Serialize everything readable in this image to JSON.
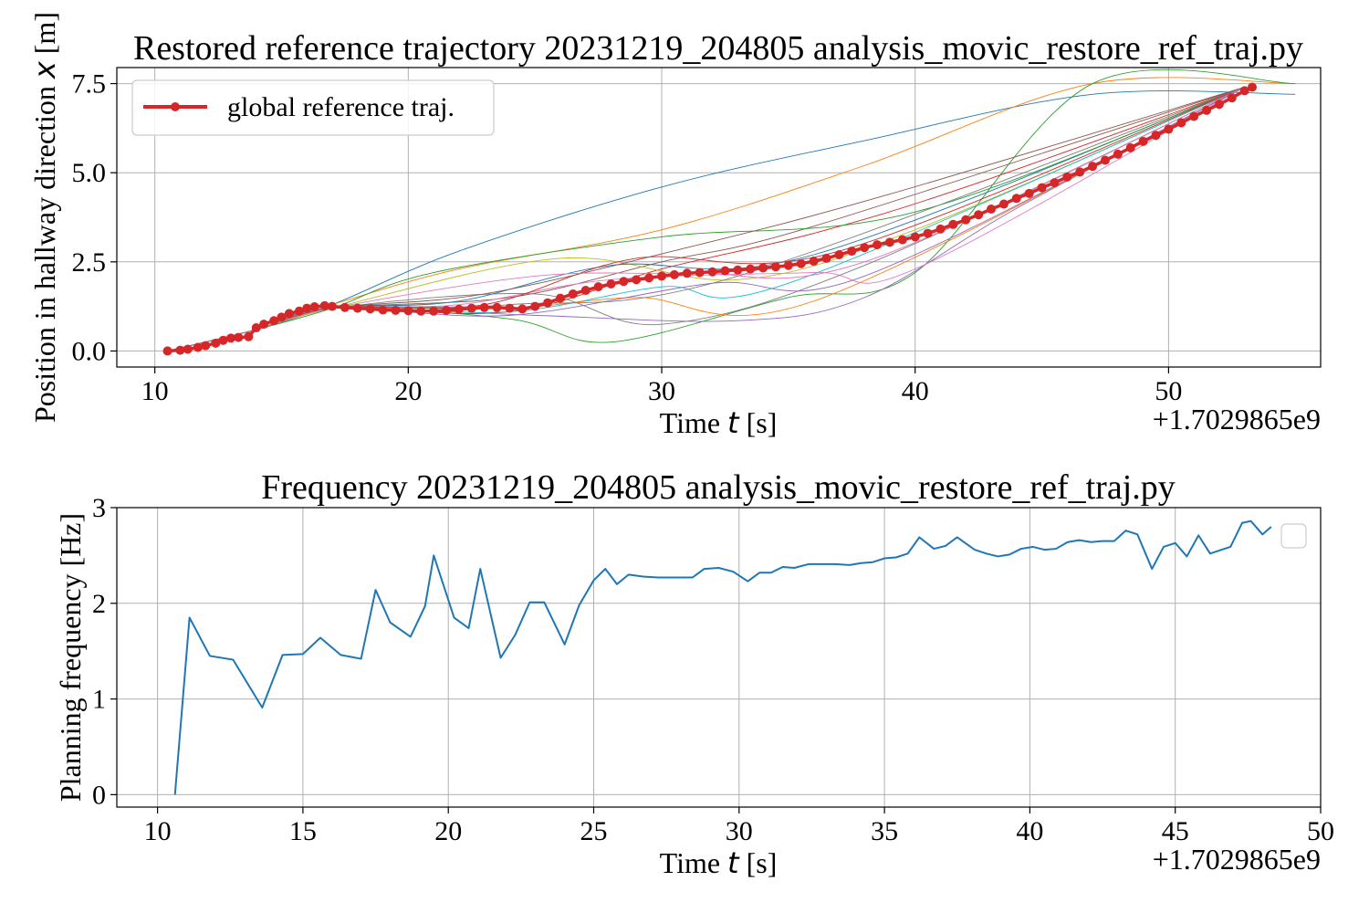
{
  "chart_data": [
    {
      "type": "line",
      "title": "Restored reference trajectory 20231219_204805 analysis_movic_restore_ref_traj.py",
      "xlabel": "Time",
      "xlabel_var": "t",
      "xlabel_unit": "[s]",
      "ylabel": "Position in hallway direction",
      "ylabel_var": "x",
      "ylabel_unit": "[m]",
      "offset_text": "+1.7029865e9",
      "xlim": [
        8.5,
        56.0
      ],
      "ylim": [
        -0.45,
        7.95
      ],
      "xticks": [
        10,
        20,
        30,
        40,
        50
      ],
      "xtick_labels": [
        "10",
        "20",
        "30",
        "40",
        "50"
      ],
      "yticks": [
        0.0,
        2.5,
        5.0,
        7.5
      ],
      "ytick_labels": [
        "0.0",
        "2.5",
        "5.0",
        "7.5"
      ],
      "grid": true,
      "legend_position": "upper-left",
      "background_traj_colors": [
        "#1f77b4",
        "#ff7f0e",
        "#2ca02c",
        "#d62728",
        "#9467bd",
        "#8c564b",
        "#e377c2",
        "#7f7f7f",
        "#bcbd22",
        "#17becf"
      ],
      "background_trajectories": [
        {
          "x": [
            10.5,
            14,
            17,
            22,
            30,
            38,
            47,
            55
          ],
          "y": [
            0.0,
            0.6,
            1.3,
            2.8,
            4.6,
            5.9,
            7.2,
            7.2
          ]
        },
        {
          "x": [
            10.5,
            14,
            17,
            22,
            30,
            38,
            47,
            55
          ],
          "y": [
            0.0,
            0.6,
            1.3,
            2.3,
            3.4,
            5.2,
            7.5,
            7.5
          ]
        },
        {
          "x": [
            10.5,
            14,
            17,
            24,
            28,
            35,
            40,
            47,
            55
          ],
          "y": [
            0.0,
            0.6,
            1.2,
            0.9,
            0.25,
            1.5,
            2.2,
            7.5,
            7.5
          ]
        },
        {
          "x": [
            10.5,
            14,
            17,
            24,
            30,
            36,
            42,
            53
          ],
          "y": [
            0.0,
            0.6,
            1.2,
            1.1,
            2.3,
            3.3,
            4.6,
            7.4
          ]
        },
        {
          "x": [
            10.5,
            14,
            17,
            25,
            33,
            38,
            44,
            53
          ],
          "y": [
            0.0,
            0.6,
            1.2,
            1.0,
            0.85,
            1.5,
            4.0,
            7.4
          ]
        },
        {
          "x": [
            10.5,
            14,
            17,
            24,
            30,
            36,
            53
          ],
          "y": [
            0.0,
            0.6,
            1.2,
            1.5,
            2.5,
            3.5,
            7.4
          ]
        },
        {
          "x": [
            10.5,
            14,
            17,
            22,
            28,
            36,
            40,
            53
          ],
          "y": [
            0.0,
            0.6,
            1.2,
            1.3,
            2.0,
            2.2,
            2.3,
            7.4
          ]
        },
        {
          "x": [
            10.5,
            14,
            17,
            25,
            30,
            38,
            53
          ],
          "y": [
            0.0,
            0.6,
            1.2,
            1.6,
            0.75,
            2.4,
            7.4
          ]
        },
        {
          "x": [
            10.5,
            14,
            17,
            26,
            33,
            40,
            53
          ],
          "y": [
            0.0,
            0.6,
            1.2,
            2.6,
            2.0,
            3.4,
            7.4
          ]
        },
        {
          "x": [
            10.5,
            14,
            17,
            24,
            30,
            35,
            53
          ],
          "y": [
            0.0,
            0.6,
            1.2,
            1.1,
            1.8,
            1.9,
            7.4
          ]
        },
        {
          "x": [
            10.5,
            14,
            17,
            22,
            28,
            36,
            53
          ],
          "y": [
            0.0,
            0.6,
            1.2,
            1.4,
            2.4,
            2.7,
            7.4
          ]
        },
        {
          "x": [
            10.5,
            14,
            17,
            24,
            29,
            36,
            53
          ],
          "y": [
            0.0,
            0.6,
            1.2,
            1.2,
            1.5,
            1.4,
            7.4
          ]
        },
        {
          "x": [
            10.5,
            14,
            17,
            21,
            30,
            40,
            53
          ],
          "y": [
            0.0,
            0.6,
            1.2,
            2.2,
            3.2,
            3.9,
            7.4
          ]
        },
        {
          "x": [
            10.5,
            14,
            17,
            23,
            29,
            37,
            53
          ],
          "y": [
            0.0,
            0.6,
            1.2,
            1.3,
            2.6,
            2.8,
            7.4
          ]
        },
        {
          "x": [
            10.5,
            14,
            17,
            24,
            32,
            38,
            53
          ],
          "y": [
            0.0,
            0.6,
            1.2,
            1.0,
            1.9,
            2.1,
            7.4
          ]
        },
        {
          "x": [
            10.5,
            14,
            17,
            23,
            31,
            39,
            53
          ],
          "y": [
            0.0,
            0.6,
            1.2,
            1.6,
            2.9,
            4.4,
            7.4
          ]
        },
        {
          "x": [
            10.5,
            14,
            17,
            25,
            31,
            38,
            53
          ],
          "y": [
            0.0,
            0.6,
            1.2,
            2.1,
            2.2,
            2.5,
            7.4
          ]
        },
        {
          "x": [
            10.5,
            14,
            17,
            24,
            33,
            53
          ],
          "y": [
            0.0,
            0.6,
            1.2,
            1.3,
            2.1,
            7.4
          ]
        }
      ],
      "series": [
        {
          "name": "global reference traj.",
          "color": "#d62728",
          "x": [
            10.5,
            11.0,
            11.3,
            11.7,
            12.0,
            12.4,
            12.7,
            13.0,
            13.3,
            13.7,
            14.0,
            14.3,
            14.7,
            15.0,
            15.3,
            15.7,
            16.0,
            16.3,
            16.7,
            17.0,
            17.5,
            18.0,
            18.5,
            19.0,
            19.5,
            20.0,
            20.5,
            21.0,
            21.5,
            22.0,
            22.5,
            23.0,
            23.5,
            24.0,
            24.5,
            25.0,
            25.5,
            26.0,
            26.5,
            27.0,
            27.5,
            28.0,
            28.5,
            29.0,
            29.5,
            30.0,
            30.5,
            31.0,
            31.5,
            32.0,
            32.5,
            33.0,
            33.5,
            34.0,
            34.5,
            35.0,
            35.5,
            36.0,
            36.5,
            37.0,
            37.5,
            38.0,
            38.5,
            39.0,
            39.5,
            40.0,
            40.5,
            41.0,
            41.5,
            42.0,
            42.5,
            43.0,
            43.5,
            44.0,
            44.5,
            45.0,
            45.5,
            46.0,
            46.5,
            47.0,
            47.5,
            48.0,
            48.5,
            49.0,
            49.5,
            50.0,
            50.5,
            51.0,
            51.5,
            52.0,
            52.5,
            53.0,
            53.3
          ],
          "y": [
            0.0,
            0.02,
            0.05,
            0.1,
            0.15,
            0.22,
            0.3,
            0.36,
            0.38,
            0.4,
            0.65,
            0.75,
            0.85,
            0.95,
            1.05,
            1.12,
            1.2,
            1.24,
            1.27,
            1.25,
            1.22,
            1.2,
            1.18,
            1.15,
            1.14,
            1.13,
            1.12,
            1.12,
            1.14,
            1.17,
            1.2,
            1.22,
            1.22,
            1.2,
            1.18,
            1.25,
            1.35,
            1.48,
            1.6,
            1.7,
            1.8,
            1.88,
            1.95,
            2.0,
            2.05,
            2.1,
            2.14,
            2.18,
            2.2,
            2.22,
            2.25,
            2.27,
            2.3,
            2.33,
            2.36,
            2.4,
            2.45,
            2.52,
            2.6,
            2.7,
            2.8,
            2.9,
            2.98,
            3.05,
            3.12,
            3.2,
            3.3,
            3.42,
            3.55,
            3.68,
            3.82,
            3.98,
            4.12,
            4.28,
            4.42,
            4.58,
            4.72,
            4.88,
            5.02,
            5.18,
            5.35,
            5.52,
            5.7,
            5.88,
            6.05,
            6.22,
            6.4,
            6.58,
            6.75,
            6.92,
            7.1,
            7.3,
            7.4
          ]
        }
      ]
    },
    {
      "type": "line",
      "title": "Frequency 20231219_204805 analysis_movic_restore_ref_traj.py",
      "xlabel": "Time",
      "xlabel_var": "t",
      "xlabel_unit": "[s]",
      "ylabel": "Planning frequency [Hz]",
      "offset_text": "+1.7029865e9",
      "xlim": [
        8.6,
        50.0
      ],
      "ylim": [
        -0.13,
        3.0
      ],
      "xticks": [
        10,
        15,
        20,
        25,
        30,
        35,
        40,
        45,
        50
      ],
      "xtick_labels": [
        "10",
        "15",
        "20",
        "25",
        "30",
        "35",
        "40",
        "45",
        "50"
      ],
      "yticks": [
        0,
        1,
        2,
        3
      ],
      "ytick_labels": [
        "0",
        "1",
        "2",
        "3"
      ],
      "grid": true,
      "legend_position": "upper-right",
      "series": [
        {
          "color": "#1f77b4",
          "x": [
            10.6,
            11.1,
            11.8,
            12.6,
            13.6,
            14.3,
            15.0,
            15.6,
            16.3,
            17.0,
            17.5,
            18.0,
            18.7,
            19.2,
            19.5,
            20.2,
            20.7,
            21.1,
            21.8,
            22.3,
            22.8,
            23.3,
            24.0,
            24.5,
            25.0,
            25.4,
            25.8,
            26.2,
            26.7,
            27.2,
            27.8,
            28.4,
            28.8,
            29.3,
            29.8,
            30.3,
            30.7,
            31.1,
            31.5,
            31.9,
            32.4,
            32.9,
            33.3,
            33.8,
            34.2,
            34.6,
            35.0,
            35.4,
            35.8,
            36.2,
            36.7,
            37.1,
            37.5,
            38.1,
            38.5,
            38.9,
            39.3,
            39.7,
            40.1,
            40.5,
            40.9,
            41.3,
            41.7,
            42.1,
            42.5,
            42.9,
            43.3,
            43.7,
            44.2,
            44.6,
            45.0,
            45.4,
            45.8,
            46.2,
            46.6,
            46.9,
            47.3,
            47.6,
            48.0,
            48.3
          ],
          "y": [
            0.0,
            1.85,
            1.45,
            1.41,
            0.91,
            1.46,
            1.47,
            1.64,
            1.46,
            1.42,
            2.14,
            1.8,
            1.65,
            1.97,
            2.5,
            1.85,
            1.74,
            2.36,
            1.43,
            1.67,
            2.01,
            2.01,
            1.57,
            1.98,
            2.24,
            2.36,
            2.2,
            2.3,
            2.28,
            2.27,
            2.27,
            2.27,
            2.36,
            2.37,
            2.33,
            2.23,
            2.32,
            2.32,
            2.38,
            2.37,
            2.41,
            2.41,
            2.41,
            2.4,
            2.42,
            2.43,
            2.47,
            2.48,
            2.52,
            2.69,
            2.57,
            2.6,
            2.69,
            2.56,
            2.52,
            2.49,
            2.51,
            2.57,
            2.59,
            2.56,
            2.57,
            2.64,
            2.66,
            2.64,
            2.65,
            2.65,
            2.76,
            2.72,
            2.36,
            2.59,
            2.63,
            2.49,
            2.71,
            2.52,
            2.56,
            2.59,
            2.84,
            2.86,
            2.72,
            2.8
          ]
        }
      ]
    }
  ]
}
